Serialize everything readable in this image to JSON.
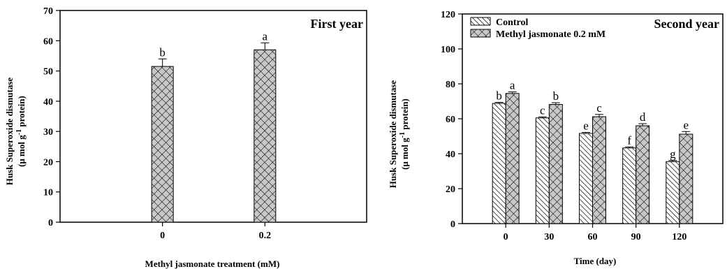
{
  "chart_data": [
    {
      "type": "bar",
      "panel_title": "First year",
      "xlabel": "Methyl jasmonate treatment (mM)",
      "ylabel_line1": "Husk Superoxide dismutase",
      "ylabel_line2_pre": "(μ mol g",
      "ylabel_line2_sup": "-1",
      "ylabel_line2_post": " protein)",
      "ylim": [
        0,
        70
      ],
      "yticks": [
        0,
        10,
        20,
        30,
        40,
        50,
        60,
        70
      ],
      "categories": [
        "0",
        "0.2"
      ],
      "series": [
        {
          "name": "",
          "values": [
            51.5,
            57.0
          ],
          "errors": [
            2.5,
            2.3
          ],
          "letters": [
            "b",
            "a"
          ],
          "pattern": "crosshatch"
        }
      ]
    },
    {
      "type": "bar",
      "panel_title": "Second year",
      "xlabel": "Time (day)",
      "ylabel_line1": "Husk Superoxide dismutase",
      "ylabel_line2_pre": "(μ mol g",
      "ylabel_line2_sup": "-1",
      "ylabel_line2_post": " protein)",
      "ylim": [
        0,
        120
      ],
      "yticks": [
        0,
        20,
        40,
        60,
        80,
        100,
        120
      ],
      "categories": [
        "0",
        "30",
        "60",
        "90",
        "120"
      ],
      "legend_position": "top-left",
      "series": [
        {
          "name": "Control",
          "values": [
            68.8,
            60.5,
            51.6,
            43.3,
            35.5
          ],
          "errors": [
            0.6,
            0.6,
            0.6,
            0.6,
            0.6
          ],
          "letters": [
            "b",
            "c",
            "e",
            "f",
            "g"
          ],
          "pattern": "diagonal"
        },
        {
          "name": "Methyl jasmonate 0.2 mM",
          "values": [
            74.5,
            68.2,
            61.2,
            56.0,
            51.2
          ],
          "errors": [
            0.9,
            1.0,
            1.3,
            1.2,
            1.5
          ],
          "letters": [
            "a",
            "b",
            "c",
            "d",
            "e"
          ],
          "pattern": "crosshatch"
        }
      ]
    }
  ]
}
